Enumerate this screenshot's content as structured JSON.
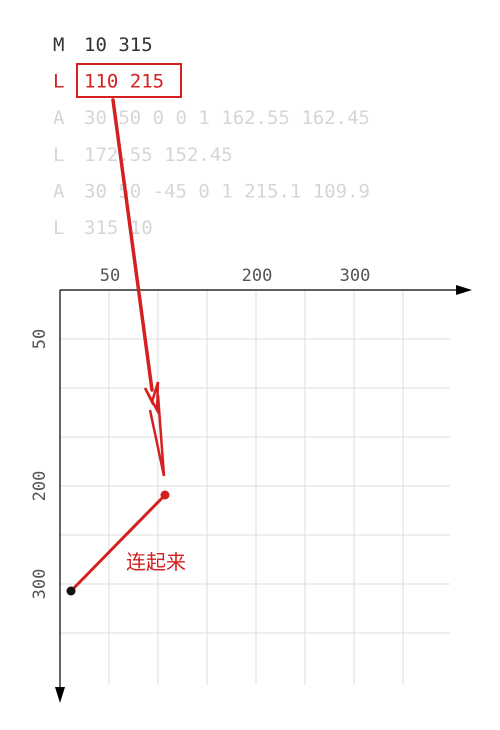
{
  "path_commands": [
    {
      "letter": "M",
      "args": "10 315",
      "state": "done"
    },
    {
      "letter": "L",
      "args": "110 215",
      "state": "active"
    },
    {
      "letter": "A",
      "args": "30 50 0 0 1 162.55 162.45",
      "state": "pending"
    },
    {
      "letter": "L",
      "args": "172.55 152.45",
      "state": "pending"
    },
    {
      "letter": "A",
      "args": "30 50 -45 0 1 215.1 109.9",
      "state": "pending"
    },
    {
      "letter": "L",
      "args": "315 10",
      "state": "pending"
    }
  ],
  "x_ticks": [
    "50",
    "200",
    "300"
  ],
  "y_ticks": [
    "50",
    "200",
    "300"
  ],
  "annotation": "连起来",
  "points": {
    "start": {
      "x": 10,
      "y": 315
    },
    "end": {
      "x": 110,
      "y": 215
    }
  },
  "colors": {
    "done": "#333333",
    "active": "#d42020",
    "pending": "#d6d6d6",
    "grid": "#dcdcdc",
    "axis": "#000000",
    "tick_label": "#555555"
  }
}
